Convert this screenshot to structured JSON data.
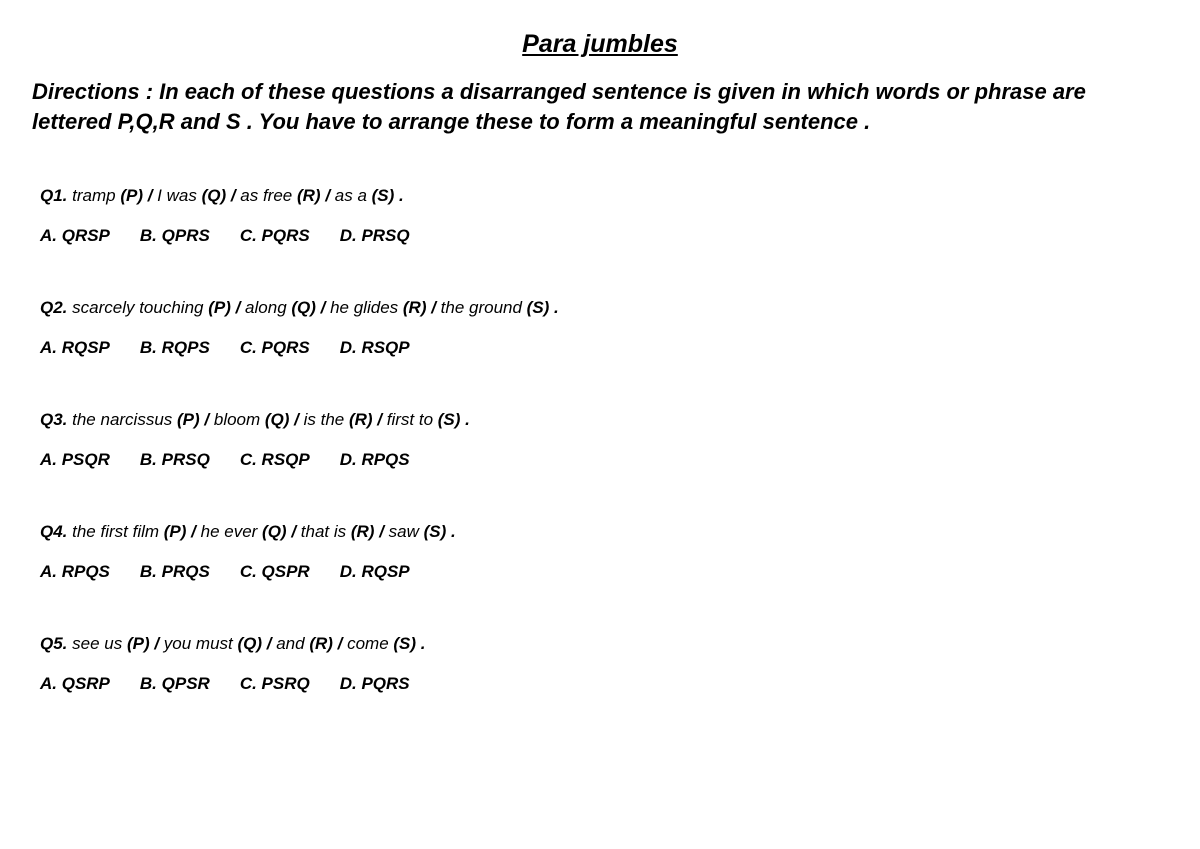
{
  "title": "Para jumbles",
  "directions": "Directions : In each of these questions a disarranged sentence is given in which words or phrase are lettered P,Q,R and S . You have to arrange these to form a meaningful sentence .",
  "questions": [
    {
      "qnum": "Q1.",
      "segments": [
        {
          "text": " tramp ",
          "label": "(P)"
        },
        {
          "text": " I was ",
          "label": "(Q)"
        },
        {
          "text": " as free ",
          "label": "(R)"
        },
        {
          "text": " as a ",
          "label": "(S) ."
        }
      ],
      "options": [
        "A. QRSP",
        "B. QPRS",
        "C. PQRS",
        "D. PRSQ"
      ]
    },
    {
      "qnum": "Q2.",
      "segments": [
        {
          "text": "  scarcely touching ",
          "label": "(P)"
        },
        {
          "text": " along ",
          "label": "(Q)"
        },
        {
          "text": " he glides ",
          "label": "(R)"
        },
        {
          "text": " the ground ",
          "label": "(S) ."
        }
      ],
      "options": [
        "A. RQSP",
        "B. RQPS",
        "C. PQRS",
        "D. RSQP"
      ]
    },
    {
      "qnum": "Q3.",
      "segments": [
        {
          "text": " the narcissus ",
          "label": "(P)"
        },
        {
          "text": " bloom ",
          "label": "(Q)"
        },
        {
          "text": " is the ",
          "label": "(R)"
        },
        {
          "text": " first to ",
          "label": "(S) ."
        }
      ],
      "options": [
        "A. PSQR",
        "B. PRSQ",
        "C. RSQP",
        "D. RPQS"
      ]
    },
    {
      "qnum": "Q4.",
      "segments": [
        {
          "text": " the first film ",
          "label": "(P)"
        },
        {
          "text": " he ever ",
          "label": "(Q)"
        },
        {
          "text": " that is ",
          "label": "(R)"
        },
        {
          "text": " saw ",
          "label": "(S) ."
        }
      ],
      "options": [
        "A. RPQS",
        "B. PRQS",
        "C. QSPR",
        "D. RQSP"
      ]
    },
    {
      "qnum": "Q5.",
      "segments": [
        {
          "text": " see us ",
          "label": "(P)"
        },
        {
          "text": " you must ",
          "label": "(Q)"
        },
        {
          "text": " and ",
          "label": "(R)"
        },
        {
          "text": " come ",
          "label": "(S) ."
        }
      ],
      "options": [
        "A. QSRP",
        "B. QPSR",
        "C. PSRQ",
        "D. PQRS"
      ]
    }
  ],
  "separator": "  /  ",
  "separator_tight": "  / "
}
